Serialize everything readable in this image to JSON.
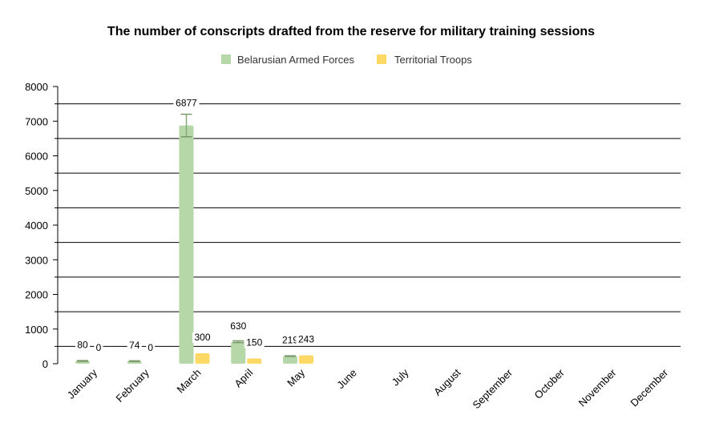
{
  "chart_data": {
    "type": "bar",
    "title": "The number of conscripts drafted from the reserve for military training sessions",
    "xlabel": "",
    "ylabel": "",
    "ylim": [
      0,
      8000
    ],
    "yticks": [
      0,
      1000,
      2000,
      3000,
      4000,
      5000,
      6000,
      7000,
      8000
    ],
    "grid": true,
    "legend_position": "top",
    "categories": [
      "January",
      "February",
      "March",
      "April",
      "May",
      "June",
      "July",
      "August",
      "September",
      "October",
      "November",
      "December"
    ],
    "series": [
      {
        "name": "Belarusian Armed Forces",
        "color": "#b6d7a8",
        "values": [
          80,
          74,
          6877,
          630,
          219,
          null,
          null,
          null,
          null,
          null,
          null,
          null
        ],
        "error_bars": [
          [
            70,
            90
          ],
          [
            65,
            83
          ],
          [
            6550,
            7200
          ],
          [
            610,
            660
          ],
          [
            210,
            228
          ],
          null,
          null,
          null,
          null,
          null,
          null,
          null
        ]
      },
      {
        "name": "Territorial Troops",
        "color": "#ffd966",
        "values": [
          0,
          0,
          300,
          150,
          243,
          null,
          null,
          null,
          null,
          null,
          null,
          null
        ]
      }
    ]
  }
}
